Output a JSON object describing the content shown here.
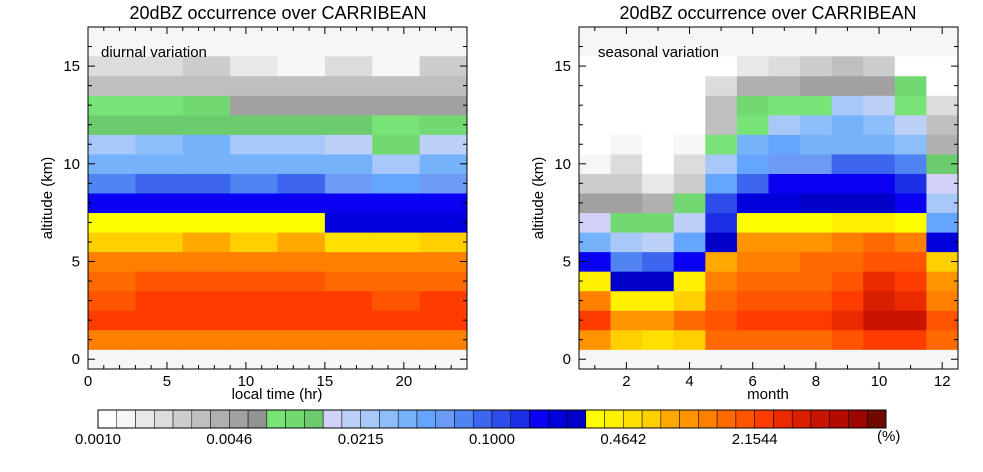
{
  "palette": [
    "#ffffff",
    "#f6f6f6",
    "#e8e8e8",
    "#dcdcdc",
    "#cdcdcd",
    "#bfbfbf",
    "#b0b0b0",
    "#a1a1a1",
    "#939393",
    "#78e478",
    "#72d872",
    "#6ccb6c",
    "#d2d2f8",
    "#bcd0f8",
    "#a8c8fa",
    "#8ebefa",
    "#76b2fa",
    "#64a6ff",
    "#6d9af4",
    "#4f84f2",
    "#3c66ee",
    "#2e4cea",
    "#1c2ee6",
    "#0a00f2",
    "#0000dc",
    "#0000c8",
    "#ffff00",
    "#fff000",
    "#ffe000",
    "#ffcf00",
    "#ffa800",
    "#ff9400",
    "#ff8000",
    "#ff6a00",
    "#ff5400",
    "#ff3c00",
    "#ec2a00",
    "#d81f00",
    "#c81400",
    "#b40a00",
    "#9c0500",
    "#6e0a00"
  ],
  "colorbar": {
    "labels": [
      "0.0010",
      "0.0046",
      "0.0215",
      "0.1000",
      "0.4642",
      "2.1544"
    ],
    "unit": "(%)"
  },
  "chart_data": [
    {
      "type": "heatmap",
      "title": "20dBZ occurrence over CARRIBEAN",
      "annotation": "diurnal variation",
      "xlabel": "local time (hr)",
      "ylabel": "altitude (km)",
      "xlim": [
        0,
        24
      ],
      "ylim": [
        -0.5,
        17
      ],
      "xticks": [
        0,
        5,
        10,
        15,
        20
      ],
      "yticks": [
        0,
        5,
        10,
        15
      ],
      "x": [
        0,
        3,
        6,
        9,
        12,
        15,
        18,
        21
      ],
      "x_bin_width": 3,
      "y": [
        1,
        2,
        3,
        4,
        5,
        6,
        7,
        8,
        9,
        10,
        11,
        12,
        13,
        14,
        15
      ],
      "y_bin_height": 1,
      "levels": [
        [
          32,
          32,
          32,
          32,
          32,
          32,
          32,
          32
        ],
        [
          35,
          35,
          35,
          35,
          35,
          35,
          35,
          35
        ],
        [
          34,
          35,
          35,
          35,
          35,
          35,
          34,
          35
        ],
        [
          33,
          34,
          34,
          34,
          34,
          33,
          33,
          33
        ],
        [
          32,
          32,
          32,
          32,
          32,
          32,
          32,
          32
        ],
        [
          29,
          29,
          30,
          29,
          30,
          28,
          28,
          29
        ],
        [
          26,
          26,
          26,
          26,
          26,
          24,
          24,
          24
        ],
        [
          23,
          23,
          23,
          23,
          23,
          23,
          23,
          23
        ],
        [
          19,
          20,
          20,
          19,
          20,
          18,
          17,
          18
        ],
        [
          16,
          16,
          16,
          16,
          16,
          16,
          14,
          16
        ],
        [
          14,
          15,
          16,
          14,
          14,
          13,
          10,
          13
        ],
        [
          11,
          11,
          11,
          11,
          11,
          11,
          9,
          10
        ],
        [
          9,
          9,
          10,
          7,
          7,
          7,
          7,
          7
        ],
        [
          5,
          5,
          5,
          5,
          5,
          5,
          5,
          5
        ],
        [
          3,
          3,
          4,
          2,
          1,
          3,
          1,
          4
        ]
      ]
    },
    {
      "type": "heatmap",
      "title": "20dBZ occurrence over CARRIBEAN",
      "annotation": "seasonal variation",
      "xlabel": "month",
      "ylabel": "altitude (km)",
      "xlim": [
        0.5,
        12.5
      ],
      "ylim": [
        -0.5,
        17
      ],
      "xticks": [
        2,
        4,
        6,
        8,
        10,
        12
      ],
      "yticks": [
        0,
        5,
        10,
        15
      ],
      "x": [
        1,
        2,
        3,
        4,
        5,
        6,
        7,
        8,
        9,
        10,
        11,
        12
      ],
      "x_bin_width": 1,
      "y": [
        1,
        2,
        3,
        4,
        5,
        6,
        7,
        8,
        9,
        10,
        11,
        12,
        13,
        14,
        15
      ],
      "y_bin_height": 1,
      "levels": [
        [
          31,
          29,
          28,
          29,
          33,
          33,
          33,
          33,
          34,
          35,
          35,
          33
        ],
        [
          35,
          31,
          31,
          33,
          34,
          35,
          35,
          35,
          36,
          38,
          38,
          34
        ],
        [
          32,
          27,
          27,
          29,
          33,
          34,
          34,
          34,
          35,
          37,
          36,
          32
        ],
        [
          27,
          25,
          25,
          27,
          32,
          33,
          33,
          33,
          34,
          36,
          35,
          31
        ],
        [
          23,
          19,
          20,
          23,
          30,
          32,
          32,
          33,
          33,
          34,
          34,
          29
        ],
        [
          16,
          14,
          13,
          17,
          25,
          31,
          31,
          31,
          32,
          33,
          32,
          24
        ],
        [
          12,
          10,
          10,
          13,
          22,
          26,
          26,
          26,
          27,
          27,
          26,
          17
        ],
        [
          7,
          7,
          6,
          10,
          21,
          24,
          24,
          25,
          25,
          25,
          23,
          14
        ],
        [
          4,
          4,
          2,
          4,
          17,
          20,
          23,
          23,
          23,
          23,
          22,
          12
        ],
        [
          1,
          3,
          0,
          3,
          14,
          17,
          18,
          18,
          20,
          20,
          19,
          11
        ],
        [
          0,
          1,
          0,
          1,
          9,
          16,
          17,
          16,
          16,
          16,
          15,
          6
        ],
        [
          0,
          0,
          0,
          0,
          5,
          9,
          14,
          15,
          16,
          15,
          13,
          5
        ],
        [
          0,
          0,
          0,
          0,
          5,
          10,
          9,
          9,
          14,
          13,
          9,
          3
        ],
        [
          0,
          0,
          0,
          0,
          3,
          6,
          6,
          7,
          7,
          7,
          10,
          0
        ],
        [
          0,
          0,
          0,
          0,
          0,
          2,
          3,
          4,
          5,
          4,
          0,
          0
        ]
      ]
    }
  ]
}
